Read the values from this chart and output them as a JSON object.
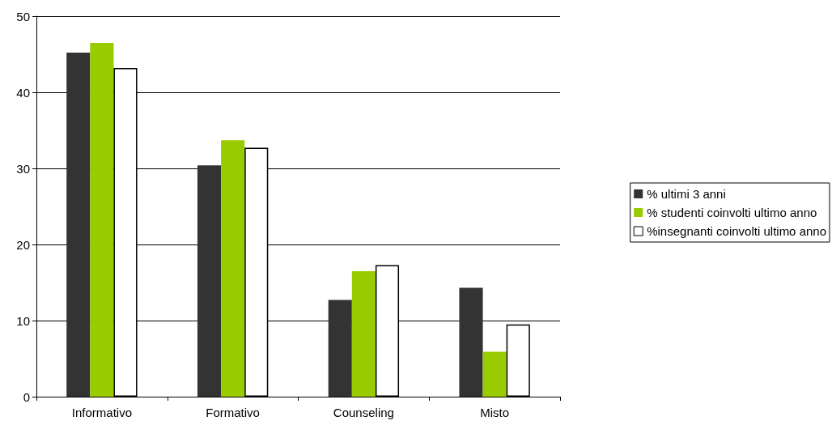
{
  "chart_data": {
    "type": "bar",
    "categories": [
      "Informativo",
      "Formativo",
      "Counseling",
      "Misto"
    ],
    "series": [
      {
        "name": "% ultimi 3 anni",
        "color": "#333333",
        "values": [
          45.2,
          30.4,
          12.7,
          14.3
        ]
      },
      {
        "name": "% studenti coinvolti ultimo anno",
        "color": "#99cc00",
        "values": [
          46.5,
          33.7,
          16.5,
          5.9
        ]
      },
      {
        "name": "%insegnanti coinvolti ultimo anno",
        "color": "#ffffff",
        "values": [
          43.2,
          32.7,
          17.3,
          9.5
        ]
      }
    ],
    "ylim": [
      0,
      50
    ],
    "yticks": [
      0,
      10,
      20,
      30,
      40,
      50
    ],
    "grid": "y",
    "legend": "right"
  }
}
